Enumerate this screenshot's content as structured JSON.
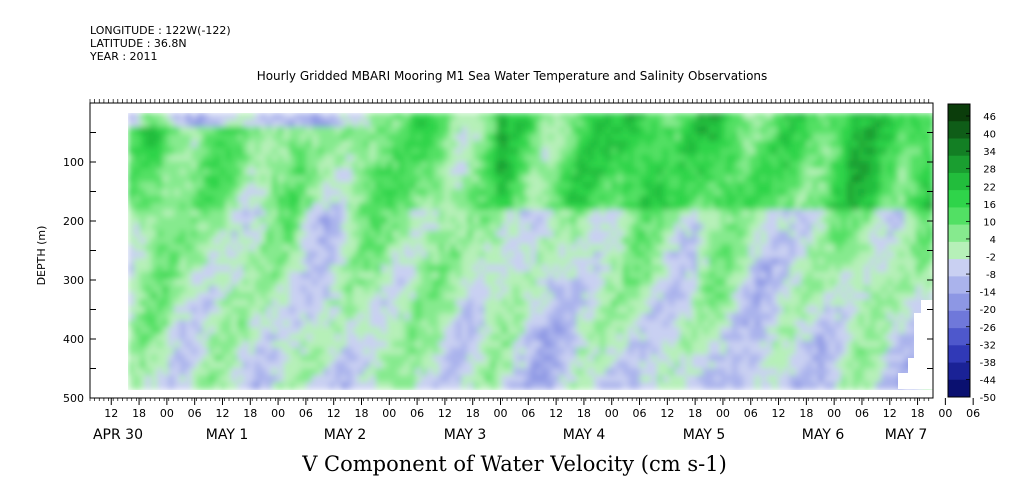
{
  "header": {
    "longitude": "LONGITUDE : 122W(-122)",
    "latitude": "LATITUDE : 36.8N",
    "year": "YEAR : 2011"
  },
  "chart_data": {
    "type": "heatmap",
    "title": "Hourly Gridded MBARI Mooring M1 Sea Water Temperature and Salinity Observations",
    "xlabel": "V Component of Water Velocity (cm s-1)",
    "ylabel": "DEPTH (m)",
    "ylim": [
      500,
      0
    ],
    "y_ticks": [
      "100",
      "200",
      "300",
      "400",
      "500"
    ],
    "x_hour_labels": [
      "12",
      "18",
      "00",
      "06",
      "12",
      "18",
      "00",
      "06",
      "12",
      "18",
      "00",
      "06",
      "12",
      "18",
      "00",
      "06",
      "12",
      "18",
      "00",
      "06",
      "12",
      "18",
      "00",
      "06",
      "12",
      "18",
      "00",
      "06",
      "12",
      "18",
      "00",
      "06"
    ],
    "x_day_labels": [
      "APR 30",
      "MAY  1",
      "MAY  2",
      "MAY  3",
      "MAY  4",
      "MAY  5",
      "MAY  6",
      "MAY  7"
    ],
    "colorbar": {
      "labels": [
        "46",
        "40",
        "34",
        "28",
        "22",
        "16",
        "10",
        "4",
        "-2",
        "-8",
        "-14",
        "-20",
        "-26",
        "-32",
        "-38",
        "-44",
        "-50"
      ],
      "colors": [
        "#0b3d0b",
        "#0f5d18",
        "#137f24",
        "#1a9e30",
        "#22bd3c",
        "#2fd44a",
        "#52e064",
        "#86ea8e",
        "#b6f0b8",
        "#c9d0f2",
        "#aab3ec",
        "#8d97e4",
        "#6f78da",
        "#4e58cc",
        "#3039b7",
        "#1a2296",
        "#0a1070"
      ],
      "range": [
        -50,
        46
      ]
    },
    "description_days": [
      "APR 30",
      "MAY 1",
      "MAY 2",
      "MAY 3",
      "MAY 4",
      "MAY 5",
      "MAY 6",
      "MAY 7"
    ]
  }
}
